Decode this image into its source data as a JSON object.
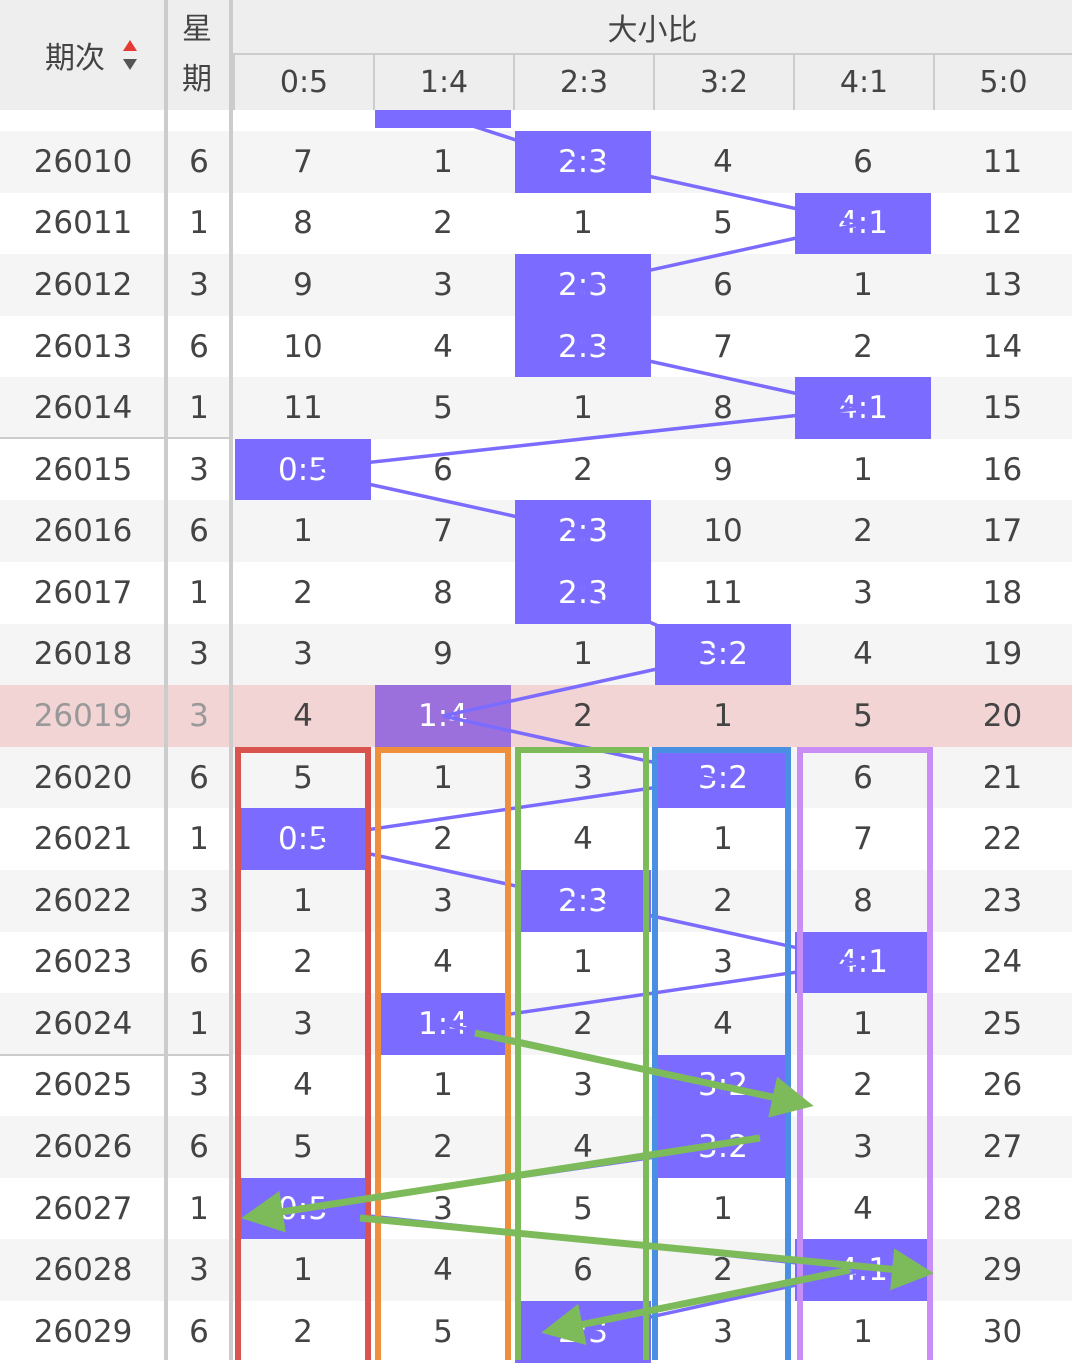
{
  "header": {
    "period": "期次",
    "weekday": "星期",
    "group": "大小比",
    "sub_headers": [
      "0:5",
      "1:4",
      "2:3",
      "3:2",
      "4:1",
      "5:0"
    ]
  },
  "rows": [
    {
      "period": "26010",
      "weekday": "6",
      "cells": [
        "7",
        "1",
        "2:3",
        "4",
        "6",
        "11"
      ]
    },
    {
      "period": "26011",
      "weekday": "1",
      "cells": [
        "8",
        "2",
        "1",
        "5",
        "4:1",
        "12"
      ]
    },
    {
      "period": "26012",
      "weekday": "3",
      "cells": [
        "9",
        "3",
        "2:3",
        "6",
        "1",
        "13"
      ]
    },
    {
      "period": "26013",
      "weekday": "6",
      "cells": [
        "10",
        "4",
        "2:3",
        "7",
        "2",
        "14"
      ]
    },
    {
      "period": "26014",
      "weekday": "1",
      "cells": [
        "11",
        "5",
        "1",
        "8",
        "4:1",
        "15"
      ]
    },
    {
      "period": "26015",
      "weekday": "3",
      "cells": [
        "0:5",
        "6",
        "2",
        "9",
        "1",
        "16"
      ]
    },
    {
      "period": "26016",
      "weekday": "6",
      "cells": [
        "1",
        "7",
        "2:3",
        "10",
        "2",
        "17"
      ]
    },
    {
      "period": "26017",
      "weekday": "1",
      "cells": [
        "2",
        "8",
        "2:3",
        "11",
        "3",
        "18"
      ]
    },
    {
      "period": "26018",
      "weekday": "3",
      "cells": [
        "3",
        "9",
        "1",
        "3:2",
        "4",
        "19"
      ]
    },
    {
      "period": "26019",
      "weekday": "3",
      "cells": [
        "4",
        "1:4",
        "2",
        "1",
        "5",
        "20"
      ],
      "highlighted": true
    },
    {
      "period": "26020",
      "weekday": "6",
      "cells": [
        "5",
        "1",
        "3",
        "3:2",
        "6",
        "21"
      ]
    },
    {
      "period": "26021",
      "weekday": "1",
      "cells": [
        "0:5",
        "2",
        "4",
        "1",
        "7",
        "22"
      ]
    },
    {
      "period": "26022",
      "weekday": "3",
      "cells": [
        "1",
        "3",
        "2:3",
        "2",
        "8",
        "23"
      ]
    },
    {
      "period": "26023",
      "weekday": "6",
      "cells": [
        "2",
        "4",
        "1",
        "3",
        "4:1",
        "24"
      ]
    },
    {
      "period": "26024",
      "weekday": "1",
      "cells": [
        "3",
        "1:4",
        "2",
        "4",
        "1",
        "25"
      ]
    },
    {
      "period": "26025",
      "weekday": "3",
      "cells": [
        "4",
        "1",
        "3",
        "3:2",
        "2",
        "26"
      ]
    },
    {
      "period": "26026",
      "weekday": "6",
      "cells": [
        "5",
        "2",
        "4",
        "3:2",
        "3",
        "27"
      ]
    },
    {
      "period": "26027",
      "weekday": "1",
      "cells": [
        "0:5",
        "3",
        "5",
        "1",
        "4",
        "28"
      ]
    },
    {
      "period": "26028",
      "weekday": "3",
      "cells": [
        "1",
        "4",
        "6",
        "2",
        "4:1",
        "29"
      ]
    },
    {
      "period": "26029",
      "weekday": "6",
      "cells": [
        "2",
        "5",
        "2:3",
        "3",
        "1",
        "30"
      ]
    }
  ]
}
